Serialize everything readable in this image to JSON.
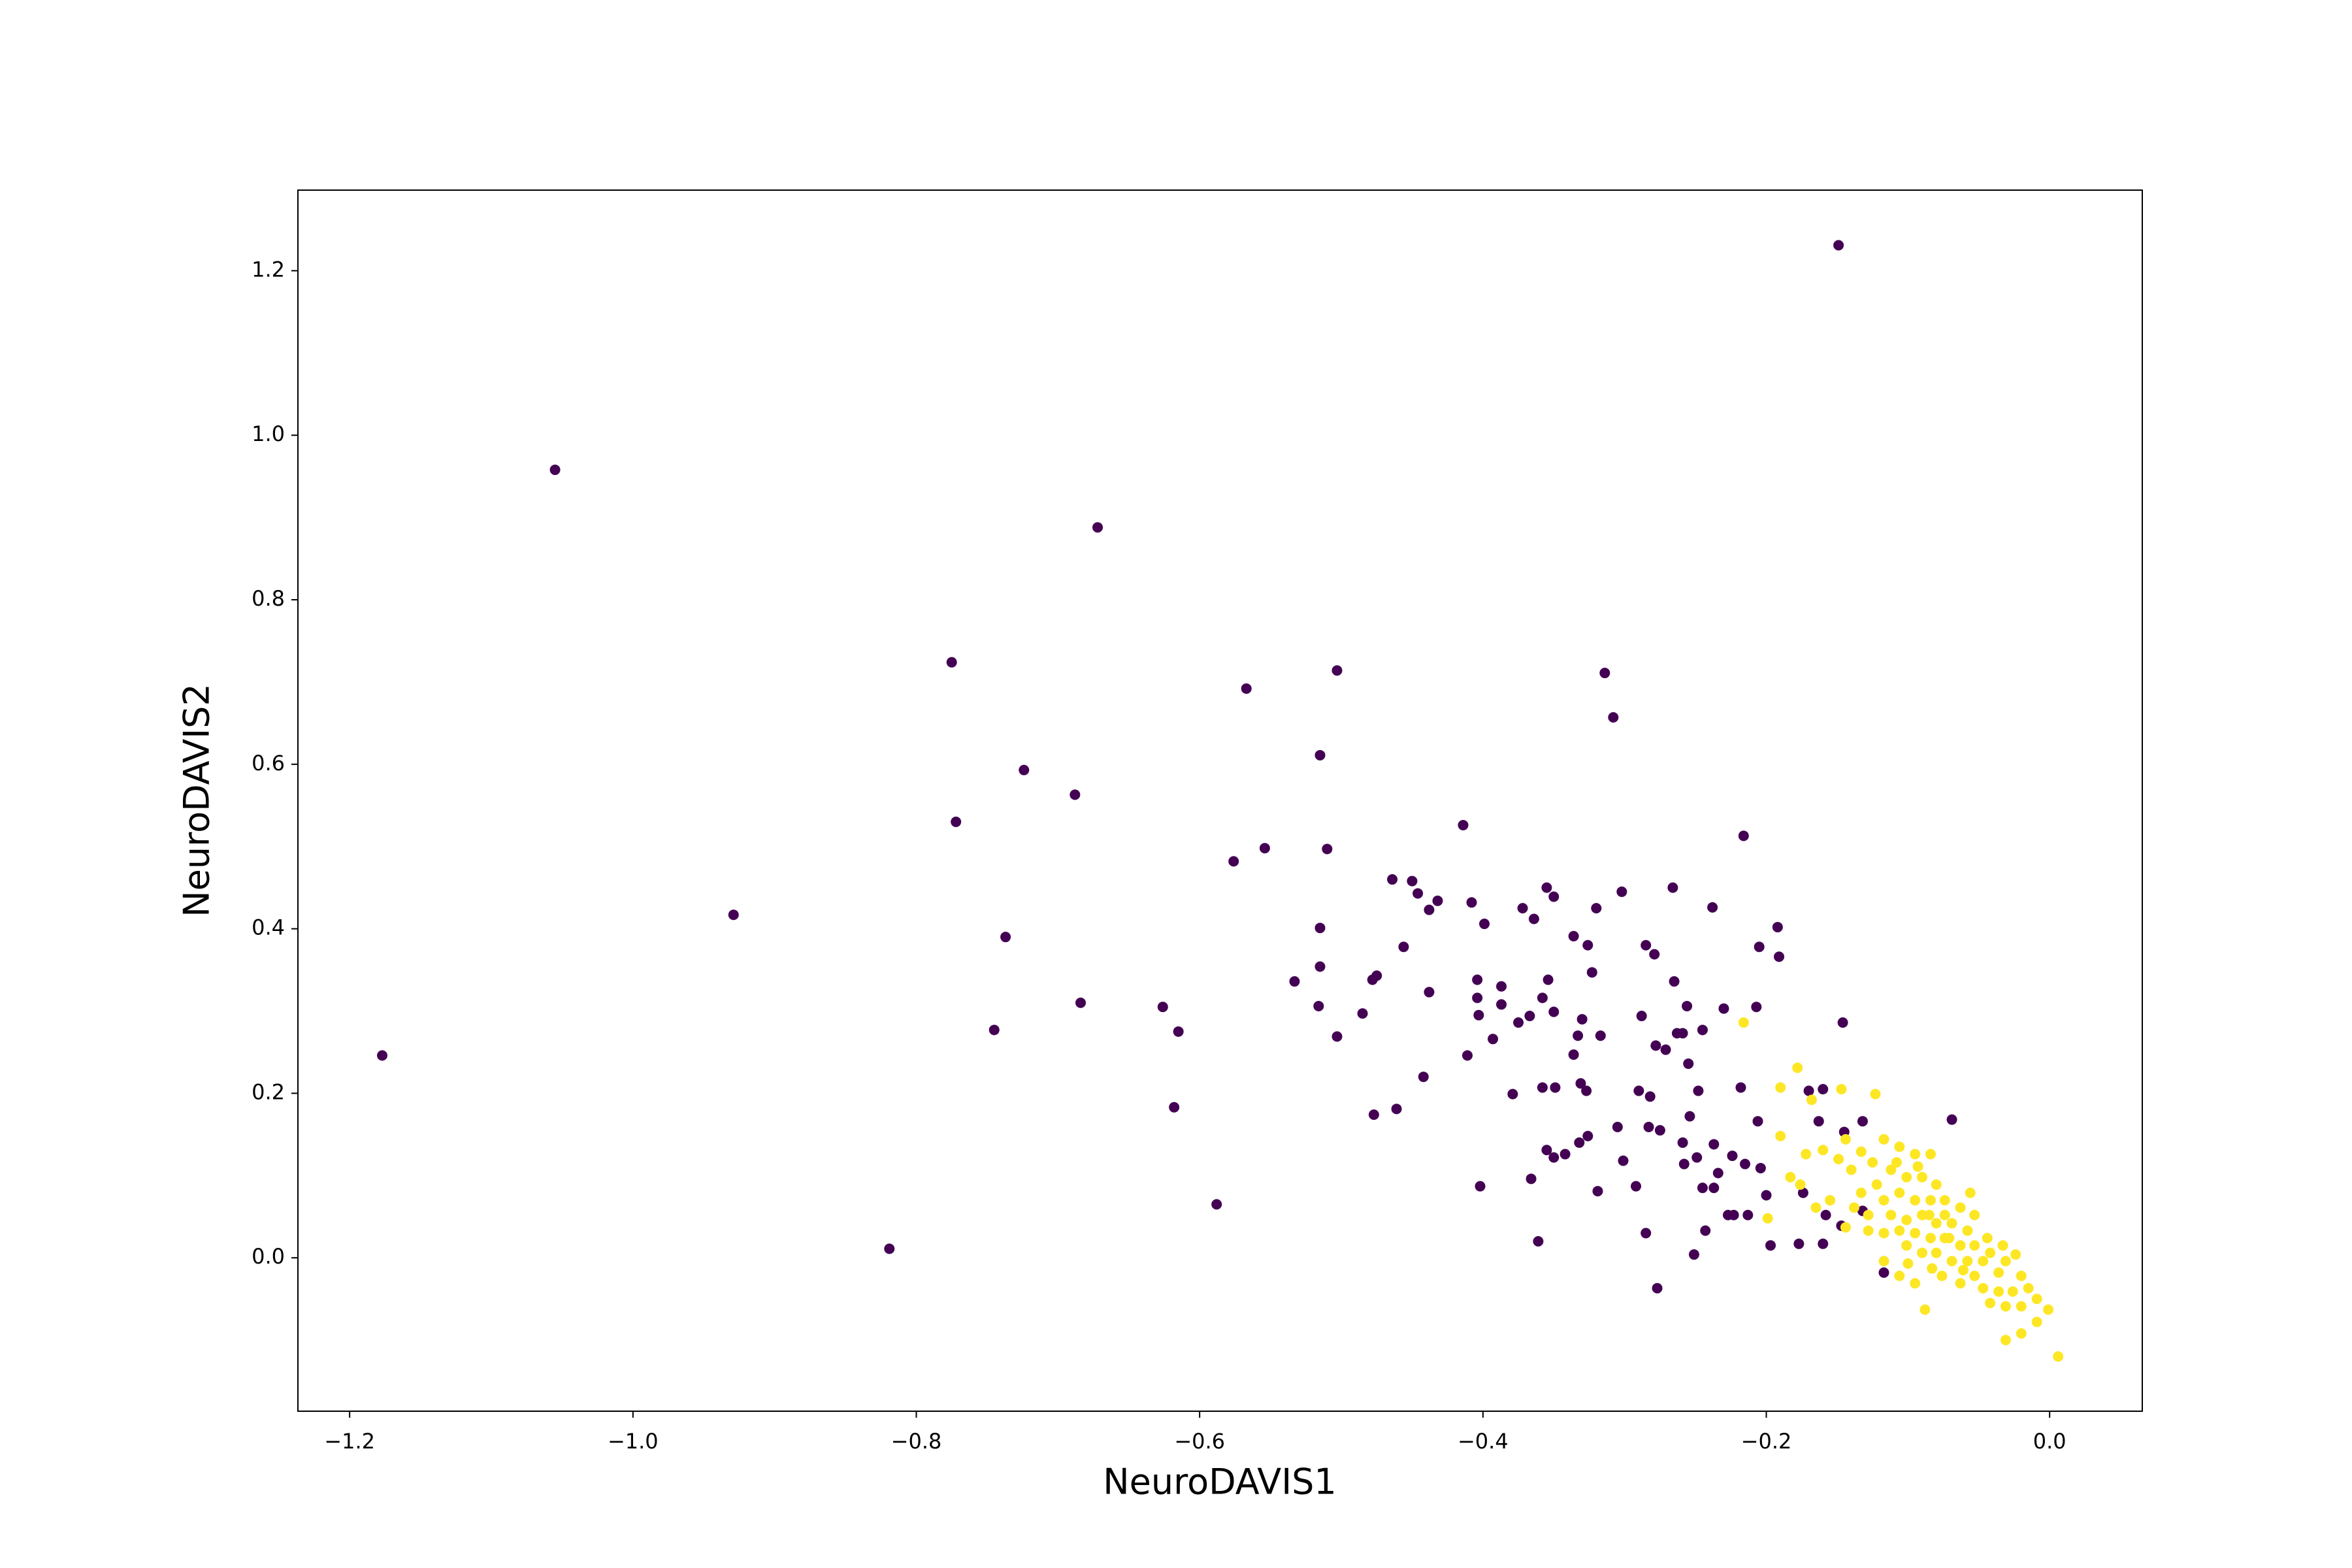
{
  "chart_data": {
    "type": "scatter",
    "x_label": "NeuroDAVIS1",
    "y_label": "NeuroDAVIS2",
    "xlim": [
      -1.2365,
      0.0654
    ],
    "ylim": [
      -0.1865,
      1.298
    ],
    "xticks": [
      {
        "value": -1.2,
        "label": "−1.2"
      },
      {
        "value": -1.0,
        "label": "−1.0"
      },
      {
        "value": -0.8,
        "label": "−0.8"
      },
      {
        "value": -0.6,
        "label": "−0.6"
      },
      {
        "value": -0.4,
        "label": "−0.4"
      },
      {
        "value": -0.2,
        "label": "−0.2"
      },
      {
        "value": 0,
        "label": "0.0"
      }
    ],
    "yticks": [
      {
        "value": 0,
        "label": "0.0"
      },
      0.2,
      0.4,
      0.6,
      0.8,
      {
        "value": 1,
        "label": "1.0"
      },
      1.2
    ],
    "series": [
      {
        "color": "#440154",
        "x": [
          -0.149,
          -1.055,
          -0.672,
          -0.775,
          -0.503,
          -0.314,
          -0.308,
          -0.567,
          -0.515,
          -0.724,
          -0.688,
          -0.772,
          -0.414,
          -0.216,
          -0.554,
          -0.51,
          -0.576,
          -0.929,
          -0.737,
          -1.177,
          -0.684,
          -0.626,
          -0.615,
          -0.745,
          -0.618,
          -0.819,
          -0.588,
          -0.146,
          -0.207,
          -0.192,
          -0.205,
          -0.191,
          -0.238,
          -0.266,
          -0.302,
          -0.32,
          -0.355,
          -0.35,
          -0.372,
          -0.364,
          -0.408,
          -0.399,
          -0.464,
          -0.45,
          -0.446,
          -0.432,
          -0.438,
          -0.456,
          -0.533,
          -0.515,
          -0.515,
          -0.478,
          -0.475,
          -0.516,
          -0.485,
          -0.503,
          -0.438,
          -0.442,
          -0.461,
          -0.477,
          -0.404,
          -0.404,
          -0.403,
          -0.411,
          -0.393,
          -0.387,
          -0.387,
          -0.375,
          -0.367,
          -0.358,
          -0.354,
          -0.35,
          -0.336,
          -0.326,
          -0.323,
          -0.333,
          -0.33,
          -0.336,
          -0.317,
          -0.288,
          -0.285,
          -0.279,
          -0.265,
          -0.278,
          -0.271,
          -0.263,
          -0.259,
          -0.245,
          -0.256,
          -0.23,
          -0.331,
          -0.327,
          -0.358,
          -0.349,
          -0.379,
          -0.29,
          -0.282,
          -0.255,
          -0.248,
          -0.254,
          -0.305,
          -0.326,
          -0.332,
          -0.355,
          -0.35,
          -0.342,
          -0.366,
          -0.402,
          -0.301,
          -0.292,
          -0.319,
          -0.283,
          -0.275,
          -0.259,
          -0.249,
          -0.258,
          -0.245,
          -0.237,
          -0.234,
          -0.237,
          -0.218,
          -0.206,
          -0.224,
          -0.215,
          -0.204,
          -0.2,
          -0.213,
          -0.227,
          -0.223,
          -0.243,
          -0.285,
          -0.251,
          -0.361,
          -0.277,
          -0.197,
          -0.177,
          -0.16,
          -0.163,
          -0.16,
          -0.17,
          -0.145,
          -0.132,
          -0.174,
          -0.158,
          -0.147,
          -0.069,
          -0.132,
          -0.117
        ],
        "y": [
          1.231,
          0.958,
          0.888,
          0.724,
          0.714,
          0.711,
          0.657,
          0.692,
          0.611,
          0.593,
          0.563,
          0.53,
          0.526,
          0.513,
          0.498,
          0.497,
          0.482,
          0.417,
          0.39,
          0.246,
          0.31,
          0.305,
          0.275,
          0.277,
          0.183,
          0.011,
          0.065,
          0.286,
          0.305,
          0.402,
          0.378,
          0.366,
          0.426,
          0.45,
          0.445,
          0.425,
          0.45,
          0.439,
          0.425,
          0.412,
          0.432,
          0.406,
          0.46,
          0.458,
          0.443,
          0.434,
          0.423,
          0.378,
          0.336,
          0.401,
          0.354,
          0.338,
          0.343,
          0.306,
          0.297,
          0.269,
          0.323,
          0.22,
          0.181,
          0.174,
          0.338,
          0.316,
          0.295,
          0.246,
          0.266,
          0.33,
          0.308,
          0.286,
          0.294,
          0.316,
          0.338,
          0.299,
          0.391,
          0.38,
          0.347,
          0.27,
          0.29,
          0.247,
          0.27,
          0.294,
          0.38,
          0.369,
          0.336,
          0.258,
          0.253,
          0.273,
          0.273,
          0.277,
          0.306,
          0.303,
          0.212,
          0.203,
          0.207,
          0.207,
          0.199,
          0.203,
          0.196,
          0.236,
          0.203,
          0.172,
          0.159,
          0.148,
          0.14,
          0.131,
          0.122,
          0.126,
          0.096,
          0.087,
          0.118,
          0.087,
          0.081,
          0.159,
          0.155,
          0.14,
          0.122,
          0.114,
          0.085,
          0.138,
          0.103,
          0.085,
          0.207,
          0.166,
          0.124,
          0.114,
          0.109,
          0.076,
          0.052,
          0.052,
          0.052,
          0.033,
          0.03,
          0.004,
          0.02,
          -0.037,
          0.015,
          0.017,
          0.017,
          0.166,
          0.205,
          0.203,
          0.153,
          0.166,
          0.079,
          0.052,
          0.039,
          0.168,
          0.057,
          -0.018
        ]
      },
      {
        "color": "#fde725",
        "x": [
          -0.216,
          -0.178,
          -0.19,
          -0.168,
          -0.147,
          -0.123,
          -0.19,
          -0.199,
          -0.183,
          -0.172,
          -0.16,
          -0.149,
          -0.14,
          -0.133,
          -0.125,
          -0.117,
          -0.106,
          -0.095,
          -0.084,
          -0.112,
          -0.101,
          -0.09,
          -0.08,
          -0.122,
          -0.133,
          -0.138,
          -0.128,
          -0.117,
          -0.106,
          -0.095,
          -0.084,
          -0.074,
          -0.063,
          -0.056,
          -0.053,
          -0.112,
          -0.101,
          -0.09,
          -0.08,
          -0.069,
          -0.058,
          -0.106,
          -0.095,
          -0.084,
          -0.074,
          -0.063,
          -0.053,
          -0.117,
          -0.101,
          -0.09,
          -0.08,
          -0.069,
          -0.058,
          -0.047,
          -0.042,
          -0.031,
          -0.024,
          -0.036,
          -0.053,
          -0.063,
          -0.047,
          -0.036,
          -0.026,
          -0.02,
          -0.015,
          -0.009,
          -0.02,
          -0.031,
          -0.042,
          -0.001,
          -0.009,
          -0.02,
          -0.031,
          0.006,
          -0.088,
          -0.095,
          -0.106,
          -0.117,
          -0.1,
          -0.128,
          -0.144,
          -0.155,
          -0.165,
          -0.176,
          -0.085,
          -0.074,
          -0.093,
          -0.108,
          -0.144,
          -0.071,
          -0.061,
          -0.083,
          -0.076,
          -0.044,
          -0.033
        ],
        "y": [
          0.286,
          0.231,
          0.207,
          0.192,
          0.205,
          0.199,
          0.148,
          0.048,
          0.098,
          0.126,
          0.131,
          0.12,
          0.107,
          0.129,
          0.116,
          0.144,
          0.135,
          0.126,
          0.126,
          0.107,
          0.098,
          0.098,
          0.089,
          0.089,
          0.079,
          0.061,
          0.052,
          0.07,
          0.079,
          0.07,
          0.07,
          0.07,
          0.061,
          0.079,
          0.052,
          0.052,
          0.046,
          0.052,
          0.042,
          0.042,
          0.033,
          0.033,
          0.03,
          0.024,
          0.024,
          0.015,
          0.015,
          0.03,
          0.015,
          0.006,
          0.006,
          -0.004,
          -0.004,
          -0.004,
          0.006,
          -0.004,
          0.004,
          -0.018,
          -0.022,
          -0.031,
          -0.037,
          -0.041,
          -0.041,
          -0.022,
          -0.037,
          -0.05,
          -0.059,
          -0.059,
          -0.055,
          -0.063,
          -0.078,
          -0.092,
          -0.1,
          -0.12,
          -0.063,
          -0.031,
          -0.022,
          -0.004,
          -0.007,
          0.033,
          0.037,
          0.07,
          0.061,
          0.089,
          0.052,
          0.052,
          0.111,
          0.116,
          0.144,
          0.024,
          -0.015,
          -0.013,
          -0.022,
          0.024,
          0.015
        ]
      }
    ]
  }
}
